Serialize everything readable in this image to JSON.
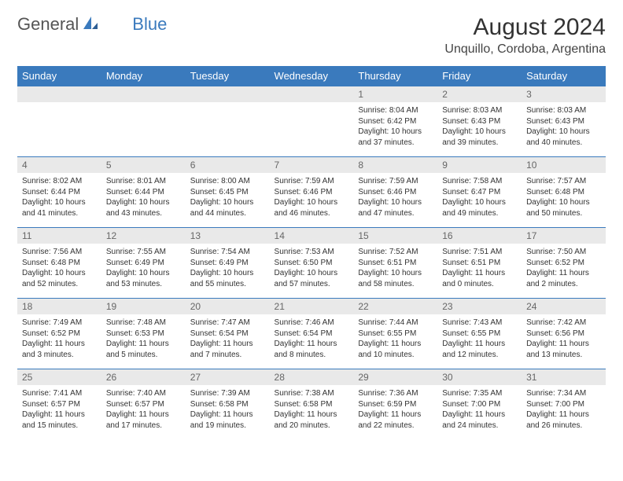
{
  "logo": {
    "word1": "General",
    "word2": "Blue"
  },
  "title": "August 2024",
  "location": "Unquillo, Cordoba, Argentina",
  "colors": {
    "header_bg": "#3a7abd",
    "header_text": "#ffffff",
    "daynum_bg": "#e9e9e9",
    "daynum_text": "#666666",
    "body_text": "#333333",
    "row_border": "#3a7abd",
    "page_bg": "#ffffff",
    "logo_gray": "#555555",
    "logo_blue": "#3a7abd"
  },
  "font": {
    "family": "Arial",
    "title_size": 30,
    "location_size": 16,
    "header_size": 13,
    "daynum_size": 12,
    "body_size": 10
  },
  "day_headers": [
    "Sunday",
    "Monday",
    "Tuesday",
    "Wednesday",
    "Thursday",
    "Friday",
    "Saturday"
  ],
  "weeks": [
    [
      null,
      null,
      null,
      null,
      {
        "n": "1",
        "sunrise": "Sunrise: 8:04 AM",
        "sunset": "Sunset: 6:42 PM",
        "daylight": "Daylight: 10 hours and 37 minutes."
      },
      {
        "n": "2",
        "sunrise": "Sunrise: 8:03 AM",
        "sunset": "Sunset: 6:43 PM",
        "daylight": "Daylight: 10 hours and 39 minutes."
      },
      {
        "n": "3",
        "sunrise": "Sunrise: 8:03 AM",
        "sunset": "Sunset: 6:43 PM",
        "daylight": "Daylight: 10 hours and 40 minutes."
      }
    ],
    [
      {
        "n": "4",
        "sunrise": "Sunrise: 8:02 AM",
        "sunset": "Sunset: 6:44 PM",
        "daylight": "Daylight: 10 hours and 41 minutes."
      },
      {
        "n": "5",
        "sunrise": "Sunrise: 8:01 AM",
        "sunset": "Sunset: 6:44 PM",
        "daylight": "Daylight: 10 hours and 43 minutes."
      },
      {
        "n": "6",
        "sunrise": "Sunrise: 8:00 AM",
        "sunset": "Sunset: 6:45 PM",
        "daylight": "Daylight: 10 hours and 44 minutes."
      },
      {
        "n": "7",
        "sunrise": "Sunrise: 7:59 AM",
        "sunset": "Sunset: 6:46 PM",
        "daylight": "Daylight: 10 hours and 46 minutes."
      },
      {
        "n": "8",
        "sunrise": "Sunrise: 7:59 AM",
        "sunset": "Sunset: 6:46 PM",
        "daylight": "Daylight: 10 hours and 47 minutes."
      },
      {
        "n": "9",
        "sunrise": "Sunrise: 7:58 AM",
        "sunset": "Sunset: 6:47 PM",
        "daylight": "Daylight: 10 hours and 49 minutes."
      },
      {
        "n": "10",
        "sunrise": "Sunrise: 7:57 AM",
        "sunset": "Sunset: 6:48 PM",
        "daylight": "Daylight: 10 hours and 50 minutes."
      }
    ],
    [
      {
        "n": "11",
        "sunrise": "Sunrise: 7:56 AM",
        "sunset": "Sunset: 6:48 PM",
        "daylight": "Daylight: 10 hours and 52 minutes."
      },
      {
        "n": "12",
        "sunrise": "Sunrise: 7:55 AM",
        "sunset": "Sunset: 6:49 PM",
        "daylight": "Daylight: 10 hours and 53 minutes."
      },
      {
        "n": "13",
        "sunrise": "Sunrise: 7:54 AM",
        "sunset": "Sunset: 6:49 PM",
        "daylight": "Daylight: 10 hours and 55 minutes."
      },
      {
        "n": "14",
        "sunrise": "Sunrise: 7:53 AM",
        "sunset": "Sunset: 6:50 PM",
        "daylight": "Daylight: 10 hours and 57 minutes."
      },
      {
        "n": "15",
        "sunrise": "Sunrise: 7:52 AM",
        "sunset": "Sunset: 6:51 PM",
        "daylight": "Daylight: 10 hours and 58 minutes."
      },
      {
        "n": "16",
        "sunrise": "Sunrise: 7:51 AM",
        "sunset": "Sunset: 6:51 PM",
        "daylight": "Daylight: 11 hours and 0 minutes."
      },
      {
        "n": "17",
        "sunrise": "Sunrise: 7:50 AM",
        "sunset": "Sunset: 6:52 PM",
        "daylight": "Daylight: 11 hours and 2 minutes."
      }
    ],
    [
      {
        "n": "18",
        "sunrise": "Sunrise: 7:49 AM",
        "sunset": "Sunset: 6:52 PM",
        "daylight": "Daylight: 11 hours and 3 minutes."
      },
      {
        "n": "19",
        "sunrise": "Sunrise: 7:48 AM",
        "sunset": "Sunset: 6:53 PM",
        "daylight": "Daylight: 11 hours and 5 minutes."
      },
      {
        "n": "20",
        "sunrise": "Sunrise: 7:47 AM",
        "sunset": "Sunset: 6:54 PM",
        "daylight": "Daylight: 11 hours and 7 minutes."
      },
      {
        "n": "21",
        "sunrise": "Sunrise: 7:46 AM",
        "sunset": "Sunset: 6:54 PM",
        "daylight": "Daylight: 11 hours and 8 minutes."
      },
      {
        "n": "22",
        "sunrise": "Sunrise: 7:44 AM",
        "sunset": "Sunset: 6:55 PM",
        "daylight": "Daylight: 11 hours and 10 minutes."
      },
      {
        "n": "23",
        "sunrise": "Sunrise: 7:43 AM",
        "sunset": "Sunset: 6:55 PM",
        "daylight": "Daylight: 11 hours and 12 minutes."
      },
      {
        "n": "24",
        "sunrise": "Sunrise: 7:42 AM",
        "sunset": "Sunset: 6:56 PM",
        "daylight": "Daylight: 11 hours and 13 minutes."
      }
    ],
    [
      {
        "n": "25",
        "sunrise": "Sunrise: 7:41 AM",
        "sunset": "Sunset: 6:57 PM",
        "daylight": "Daylight: 11 hours and 15 minutes."
      },
      {
        "n": "26",
        "sunrise": "Sunrise: 7:40 AM",
        "sunset": "Sunset: 6:57 PM",
        "daylight": "Daylight: 11 hours and 17 minutes."
      },
      {
        "n": "27",
        "sunrise": "Sunrise: 7:39 AM",
        "sunset": "Sunset: 6:58 PM",
        "daylight": "Daylight: 11 hours and 19 minutes."
      },
      {
        "n": "28",
        "sunrise": "Sunrise: 7:38 AM",
        "sunset": "Sunset: 6:58 PM",
        "daylight": "Daylight: 11 hours and 20 minutes."
      },
      {
        "n": "29",
        "sunrise": "Sunrise: 7:36 AM",
        "sunset": "Sunset: 6:59 PM",
        "daylight": "Daylight: 11 hours and 22 minutes."
      },
      {
        "n": "30",
        "sunrise": "Sunrise: 7:35 AM",
        "sunset": "Sunset: 7:00 PM",
        "daylight": "Daylight: 11 hours and 24 minutes."
      },
      {
        "n": "31",
        "sunrise": "Sunrise: 7:34 AM",
        "sunset": "Sunset: 7:00 PM",
        "daylight": "Daylight: 11 hours and 26 minutes."
      }
    ]
  ]
}
